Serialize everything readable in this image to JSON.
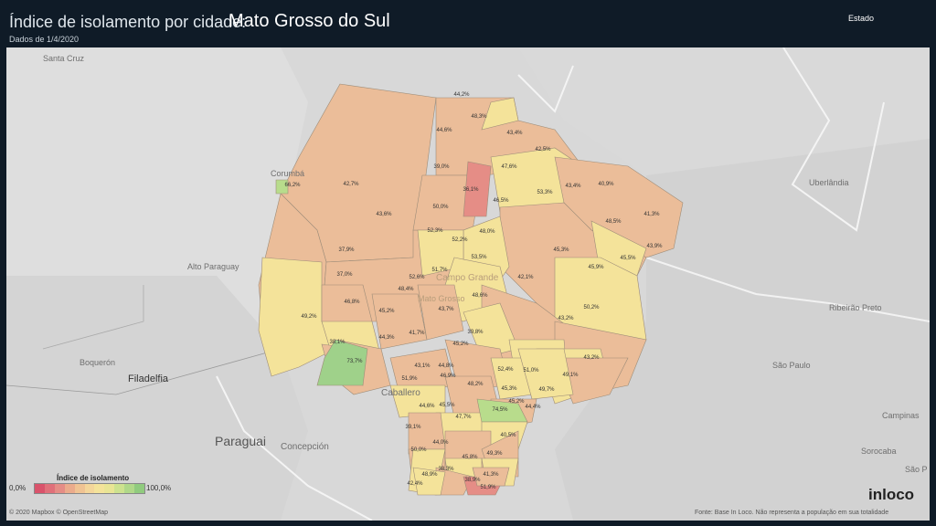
{
  "header": {
    "title_prefix": "Índice de isolamento por cidade:",
    "title_state": "Mato Grosso do Sul",
    "subtitle": "Dados de 1/4/2020",
    "dropdown_label": "Estado"
  },
  "places": {
    "santa_cruz": "Santa Cruz",
    "corumba": "Corumbá",
    "alto_paraguay": "Alto Paraguay",
    "boqueron": "Boquerón",
    "filadelfia": "Filadelfia",
    "caballero": "Caballero",
    "paraguai": "Paraguai",
    "concepcion": "Concepción",
    "campo_grande": "Campo Grande",
    "mato_grosso": "Mato Grosso",
    "uberlandia": "Uberlândia",
    "ribeirao_preto": "Ribeirão Preto",
    "sao_paulo": "São Paulo",
    "campinas": "Campinas",
    "sorocaba": "Sorocaba",
    "sao_p": "São P"
  },
  "values": [
    {
      "label": "42,7%",
      "v": 42.7
    },
    {
      "label": "43,6%",
      "v": 43.6
    },
    {
      "label": "44,2%",
      "v": 44.2
    },
    {
      "label": "48,3%",
      "v": 48.3
    },
    {
      "label": "44,6%",
      "v": 44.6
    },
    {
      "label": "43,4%",
      "v": 43.4
    },
    {
      "label": "42,5%",
      "v": 42.5
    },
    {
      "label": "39,0%",
      "v": 39.0
    },
    {
      "label": "36,1%",
      "v": 36.1
    },
    {
      "label": "47,6%",
      "v": 47.6
    },
    {
      "label": "43,4%",
      "v": 43.4
    },
    {
      "label": "40,9%",
      "v": 40.9
    },
    {
      "label": "46,5%",
      "v": 46.5
    },
    {
      "label": "53,3%",
      "v": 53.3
    },
    {
      "label": "41,3%",
      "v": 41.3
    },
    {
      "label": "48,5%",
      "v": 48.5
    },
    {
      "label": "43,9%",
      "v": 43.9
    },
    {
      "label": "50,0%",
      "v": 50.0
    },
    {
      "label": "48,0%",
      "v": 48.0
    },
    {
      "label": "52,3%",
      "v": 52.3
    },
    {
      "label": "52,2%",
      "v": 52.2
    },
    {
      "label": "45,3%",
      "v": 45.3
    },
    {
      "label": "45,5%",
      "v": 45.5
    },
    {
      "label": "45,9%",
      "v": 45.9
    },
    {
      "label": "37,9%",
      "v": 37.9
    },
    {
      "label": "53,5%",
      "v": 53.5
    },
    {
      "label": "51,7%",
      "v": 51.7
    },
    {
      "label": "42,1%",
      "v": 42.1
    },
    {
      "label": "37,0%",
      "v": 37.0
    },
    {
      "label": "52,6%",
      "v": 52.6
    },
    {
      "label": "48,4%",
      "v": 48.4
    },
    {
      "label": "48,6%",
      "v": 48.6
    },
    {
      "label": "46,8%",
      "v": 46.8
    },
    {
      "label": "45,2%",
      "v": 45.2
    },
    {
      "label": "43,7%",
      "v": 43.7
    },
    {
      "label": "50,2%",
      "v": 50.2
    },
    {
      "label": "49,2%",
      "v": 49.2
    },
    {
      "label": "43,2%",
      "v": 43.2
    },
    {
      "label": "44,3%",
      "v": 44.3
    },
    {
      "label": "41,7%",
      "v": 41.7
    },
    {
      "label": "39,8%",
      "v": 39.8
    },
    {
      "label": "38,1%",
      "v": 38.1
    },
    {
      "label": "45,2%",
      "v": 45.2
    },
    {
      "label": "73,7%",
      "v": 73.7
    },
    {
      "label": "43,2%",
      "v": 43.2
    },
    {
      "label": "43,1%",
      "v": 43.1
    },
    {
      "label": "44,8%",
      "v": 44.8
    },
    {
      "label": "52,4%",
      "v": 52.4
    },
    {
      "label": "51,0%",
      "v": 51.0
    },
    {
      "label": "49,1%",
      "v": 49.1
    },
    {
      "label": "51,9%",
      "v": 51.9
    },
    {
      "label": "46,9%",
      "v": 46.9
    },
    {
      "label": "45,3%",
      "v": 45.3
    },
    {
      "label": "48,2%",
      "v": 48.2
    },
    {
      "label": "44,6%",
      "v": 44.6
    },
    {
      "label": "45,5%",
      "v": 45.5
    },
    {
      "label": "49,7%",
      "v": 49.7
    },
    {
      "label": "45,2%",
      "v": 45.2
    },
    {
      "label": "74,5%",
      "v": 74.5
    },
    {
      "label": "44,4%",
      "v": 44.4
    },
    {
      "label": "47,7%",
      "v": 47.7
    },
    {
      "label": "39,1%",
      "v": 39.1
    },
    {
      "label": "44,0%",
      "v": 44.0
    },
    {
      "label": "40,5%",
      "v": 40.5
    },
    {
      "label": "50,0%",
      "v": 50.0
    },
    {
      "label": "45,8%",
      "v": 45.8
    },
    {
      "label": "49,3%",
      "v": 49.3
    },
    {
      "label": "38,3%",
      "v": 38.3
    },
    {
      "label": "48,9%",
      "v": 48.9
    },
    {
      "label": "41,3%",
      "v": 41.3
    },
    {
      "label": "42,4%",
      "v": 42.4
    },
    {
      "label": "38,9%",
      "v": 38.9
    },
    {
      "label": "51,9%",
      "v": 51.9
    },
    {
      "label": "66,2%",
      "v": 66.2
    }
  ],
  "legend": {
    "title": "Índice de isolamento",
    "min_label": "0,0%",
    "max_label": "100,0%",
    "colors": [
      "#d9536b",
      "#e0707a",
      "#e58d86",
      "#ebab8c",
      "#f0c393",
      "#f4d69a",
      "#f4e39a",
      "#e9e595",
      "#cde28f",
      "#b0d889",
      "#90cb7e"
    ]
  },
  "footer": {
    "attribution": "© 2020 Mapbox © OpenStreetMap",
    "source": "Fonte: Base In Loco. Não representa a população em sua totalidade",
    "logo": "inloco"
  }
}
